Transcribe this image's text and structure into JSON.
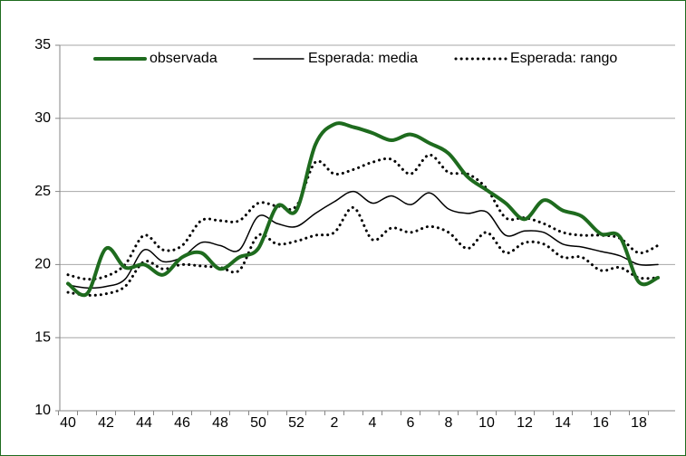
{
  "chart_data": {
    "type": "line",
    "categories": [
      "40",
      null,
      "42",
      null,
      "44",
      null,
      "46",
      null,
      "48",
      null,
      "50",
      null,
      "52",
      null,
      "2",
      null,
      "4",
      null,
      "6",
      null,
      "8",
      null,
      "10",
      null,
      "12",
      null,
      "14",
      null,
      "16",
      null,
      "18",
      null
    ],
    "series": [
      {
        "name": "observada",
        "color": "#1e6b1e",
        "width": 4,
        "dash": "solid",
        "values": [
          18.7,
          18.0,
          21.1,
          19.8,
          20.0,
          19.3,
          20.5,
          20.8,
          19.7,
          20.5,
          21.1,
          24.0,
          23.7,
          28.2,
          29.6,
          29.4,
          29.0,
          28.5,
          28.9,
          28.3,
          27.6,
          26.0,
          25.1,
          24.2,
          23.1,
          24.4,
          23.7,
          23.3,
          22.1,
          21.9,
          18.8,
          19.1
        ]
      },
      {
        "name": "Esperada: media",
        "color": "#000000",
        "width": 1.5,
        "dash": "solid",
        "values": [
          18.6,
          18.4,
          18.5,
          19.0,
          21.0,
          20.2,
          20.5,
          21.5,
          21.3,
          21.0,
          23.3,
          22.8,
          22.6,
          23.5,
          24.3,
          25.0,
          24.2,
          24.7,
          24.1,
          24.9,
          23.8,
          23.5,
          23.6,
          22.0,
          22.3,
          22.2,
          21.4,
          21.2,
          20.9,
          20.6,
          20.0,
          20.0
        ]
      },
      {
        "name": "Esperada: rango",
        "color": "#000000",
        "width": 3,
        "dash": "dotted",
        "values": [
          19.3,
          19.0,
          19.2,
          20.0,
          22.0,
          21.0,
          21.3,
          23.0,
          23.0,
          23.0,
          24.2,
          24.0,
          24.0,
          27.0,
          26.2,
          26.5,
          27.0,
          27.2,
          26.2,
          27.5,
          26.3,
          26.2,
          25.2,
          23.2,
          23.2,
          22.8,
          22.2,
          22.0,
          22.0,
          21.8,
          20.8,
          21.3
        ]
      },
      {
        "color": "#000000",
        "width": 3,
        "dash": "dotted",
        "values": [
          18.1,
          17.9,
          18.0,
          18.5,
          20.2,
          19.7,
          20.0,
          19.9,
          19.8,
          19.6,
          22.0,
          21.4,
          21.6,
          22.0,
          22.2,
          23.9,
          21.7,
          22.5,
          22.2,
          22.6,
          22.2,
          21.1,
          22.2,
          20.8,
          21.5,
          21.4,
          20.5,
          20.5,
          19.6,
          19.8,
          19.1,
          19.1
        ]
      }
    ],
    "ylim": [
      10,
      35
    ],
    "yticks": [
      10,
      15,
      20,
      25,
      30,
      35
    ],
    "grid": true,
    "legend": "top"
  }
}
